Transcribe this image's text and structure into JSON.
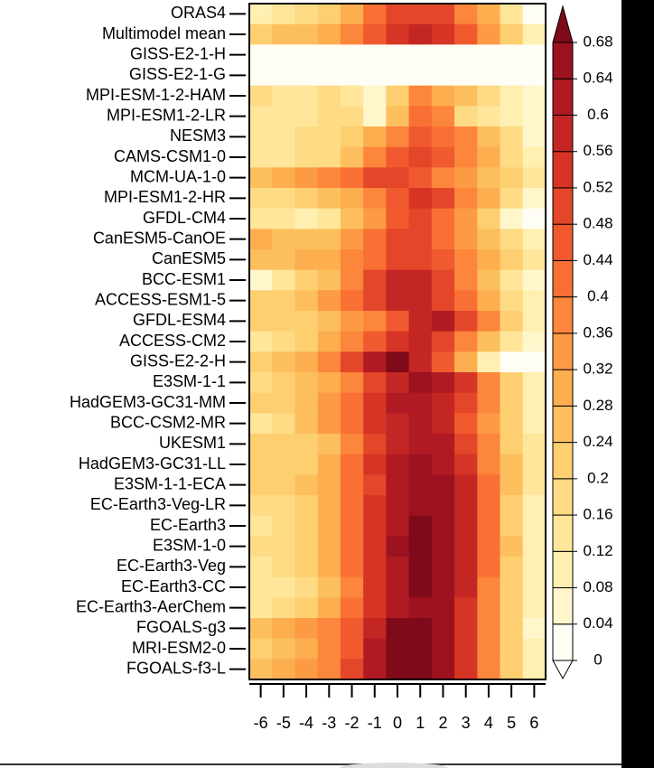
{
  "chart_data": {
    "type": "heatmap",
    "x": [
      -6,
      -5,
      -4,
      -3,
      -2,
      -1,
      0,
      1,
      2,
      3,
      4,
      5,
      6
    ],
    "y": [
      "ORAS4",
      "Multimodel mean",
      "GISS-E2-1-H",
      "GISS-E2-1-G",
      "MPI-ESM-1-2-HAM",
      "MPI-ESM1-2-LR",
      "NESM3",
      "CAMS-CSM1-0",
      "MCM-UA-1-0",
      "MPI-ESM1-2-HR",
      "GFDL-CM4",
      "CanESM5-CanOE",
      "CanESM5",
      "BCC-ESM1",
      "ACCESS-ESM1-5",
      "GFDL-ESM4",
      "ACCESS-CM2",
      "GISS-E2-2-H",
      "E3SM-1-1",
      "HadGEM3-GC31-MM",
      "BCC-CSM2-MR",
      "UKESM1",
      "HadGEM3-GC31-LL",
      "E3SM-1-1-ECA",
      "EC-Earth3-Veg-LR",
      "EC-Earth3",
      "E3SM-1-0",
      "EC-Earth3-Veg",
      "EC-Earth3-CC",
      "EC-Earth3-AerChem",
      "FGOALS-g3",
      "MRI-ESM2-0",
      "FGOALS-f3-L"
    ],
    "values": [
      [
        0.1,
        0.14,
        0.18,
        0.22,
        0.3,
        0.4,
        0.48,
        0.5,
        0.48,
        0.36,
        0.28,
        0.14,
        0.02
      ],
      [
        0.2,
        0.24,
        0.26,
        0.3,
        0.36,
        0.44,
        0.52,
        0.58,
        0.54,
        0.44,
        0.32,
        0.2,
        0.1
      ],
      [
        0,
        0,
        0,
        0,
        0,
        0,
        0,
        0,
        0,
        0,
        0,
        0,
        0
      ],
      [
        0,
        0,
        0,
        0.02,
        0.02,
        0.02,
        0,
        0,
        0,
        0,
        0,
        0,
        0
      ],
      [
        0.18,
        0.14,
        0.14,
        0.16,
        0.14,
        0.04,
        0.2,
        0.36,
        0.3,
        0.26,
        0.16,
        0.1,
        0.04
      ],
      [
        0.14,
        0.12,
        0.12,
        0.18,
        0.18,
        0.04,
        0.24,
        0.4,
        0.38,
        0.18,
        0.12,
        0.08,
        0.04
      ],
      [
        0.14,
        0.14,
        0.16,
        0.18,
        0.22,
        0.3,
        0.38,
        0.46,
        0.42,
        0.36,
        0.26,
        0.16,
        0.06
      ],
      [
        0.12,
        0.14,
        0.16,
        0.18,
        0.26,
        0.36,
        0.44,
        0.5,
        0.44,
        0.38,
        0.28,
        0.18,
        0.08
      ],
      [
        0.26,
        0.28,
        0.32,
        0.36,
        0.42,
        0.5,
        0.5,
        0.44,
        0.38,
        0.32,
        0.26,
        0.2,
        0.12
      ],
      [
        0.16,
        0.18,
        0.2,
        0.24,
        0.3,
        0.38,
        0.46,
        0.52,
        0.48,
        0.38,
        0.28,
        0.16,
        0.06
      ],
      [
        0.14,
        0.12,
        0.1,
        0.14,
        0.24,
        0.34,
        0.44,
        0.5,
        0.42,
        0.32,
        0.2,
        0.06,
        0.02
      ],
      [
        0.3,
        0.26,
        0.24,
        0.26,
        0.32,
        0.4,
        0.48,
        0.48,
        0.42,
        0.34,
        0.26,
        0.18,
        0.1
      ],
      [
        0.24,
        0.26,
        0.28,
        0.3,
        0.36,
        0.42,
        0.48,
        0.48,
        0.44,
        0.36,
        0.28,
        0.2,
        0.12
      ],
      [
        0.06,
        0.14,
        0.2,
        0.26,
        0.36,
        0.48,
        0.56,
        0.56,
        0.5,
        0.38,
        0.26,
        0.12,
        0.04
      ],
      [
        0.2,
        0.22,
        0.26,
        0.32,
        0.4,
        0.5,
        0.58,
        0.58,
        0.5,
        0.4,
        0.3,
        0.18,
        0.08
      ],
      [
        0.2,
        0.2,
        0.22,
        0.26,
        0.32,
        0.38,
        0.46,
        0.56,
        0.6,
        0.5,
        0.36,
        0.2,
        0.08
      ],
      [
        0.14,
        0.16,
        0.22,
        0.28,
        0.36,
        0.46,
        0.54,
        0.56,
        0.5,
        0.38,
        0.26,
        0.14,
        0.06
      ],
      [
        0.22,
        0.26,
        0.3,
        0.38,
        0.48,
        0.62,
        0.68,
        0.58,
        0.44,
        0.3,
        0.08,
        0.02,
        0.02
      ],
      [
        0.18,
        0.2,
        0.24,
        0.3,
        0.38,
        0.48,
        0.58,
        0.64,
        0.62,
        0.54,
        0.36,
        0.2,
        0.1
      ],
      [
        0.2,
        0.22,
        0.26,
        0.32,
        0.42,
        0.52,
        0.6,
        0.62,
        0.58,
        0.48,
        0.36,
        0.22,
        0.1
      ],
      [
        0.14,
        0.18,
        0.24,
        0.32,
        0.42,
        0.52,
        0.58,
        0.6,
        0.56,
        0.46,
        0.34,
        0.2,
        0.08
      ],
      [
        0.22,
        0.2,
        0.2,
        0.26,
        0.38,
        0.5,
        0.58,
        0.62,
        0.6,
        0.5,
        0.36,
        0.22,
        0.12
      ],
      [
        0.2,
        0.2,
        0.22,
        0.28,
        0.4,
        0.52,
        0.6,
        0.64,
        0.62,
        0.52,
        0.38,
        0.24,
        0.12
      ],
      [
        0.2,
        0.22,
        0.24,
        0.3,
        0.4,
        0.5,
        0.6,
        0.64,
        0.64,
        0.56,
        0.4,
        0.26,
        0.14
      ],
      [
        0.16,
        0.18,
        0.22,
        0.3,
        0.4,
        0.52,
        0.62,
        0.66,
        0.64,
        0.56,
        0.4,
        0.22,
        0.1
      ],
      [
        0.14,
        0.16,
        0.2,
        0.28,
        0.4,
        0.52,
        0.62,
        0.68,
        0.66,
        0.58,
        0.4,
        0.2,
        0.08
      ],
      [
        0.16,
        0.18,
        0.22,
        0.3,
        0.42,
        0.54,
        0.64,
        0.68,
        0.66,
        0.58,
        0.42,
        0.24,
        0.1
      ],
      [
        0.14,
        0.16,
        0.2,
        0.28,
        0.4,
        0.52,
        0.62,
        0.68,
        0.66,
        0.56,
        0.4,
        0.22,
        0.08
      ],
      [
        0.12,
        0.14,
        0.18,
        0.26,
        0.38,
        0.52,
        0.62,
        0.68,
        0.66,
        0.56,
        0.38,
        0.2,
        0.08
      ],
      [
        0.14,
        0.16,
        0.2,
        0.28,
        0.4,
        0.52,
        0.62,
        0.66,
        0.64,
        0.54,
        0.38,
        0.2,
        0.08
      ],
      [
        0.26,
        0.28,
        0.32,
        0.38,
        0.46,
        0.58,
        0.68,
        0.7,
        0.66,
        0.52,
        0.36,
        0.2,
        0.06
      ],
      [
        0.2,
        0.24,
        0.3,
        0.36,
        0.46,
        0.6,
        0.7,
        0.7,
        0.64,
        0.52,
        0.36,
        0.2,
        0.08
      ],
      [
        0.24,
        0.28,
        0.32,
        0.38,
        0.48,
        0.6,
        0.7,
        0.7,
        0.66,
        0.52,
        0.36,
        0.22,
        0.1
      ]
    ],
    "colorbar": {
      "levels": [
        0,
        0.04,
        0.08,
        0.12,
        0.16,
        0.2,
        0.24,
        0.28,
        0.32,
        0.36,
        0.4,
        0.44,
        0.48,
        0.52,
        0.56,
        0.6,
        0.64,
        0.68
      ],
      "colors": [
        "#ffffff",
        "#fffef5",
        "#fff6cc",
        "#ffefb0",
        "#ffe69a",
        "#fedb84",
        "#fecf70",
        "#fdbf5e",
        "#fdae4f",
        "#fd9b44",
        "#fc863b",
        "#f97034",
        "#f05a2e",
        "#e4462a",
        "#d63526",
        "#c42624",
        "#b01a22",
        "#9c1220",
        "#7f0a1a"
      ]
    }
  }
}
